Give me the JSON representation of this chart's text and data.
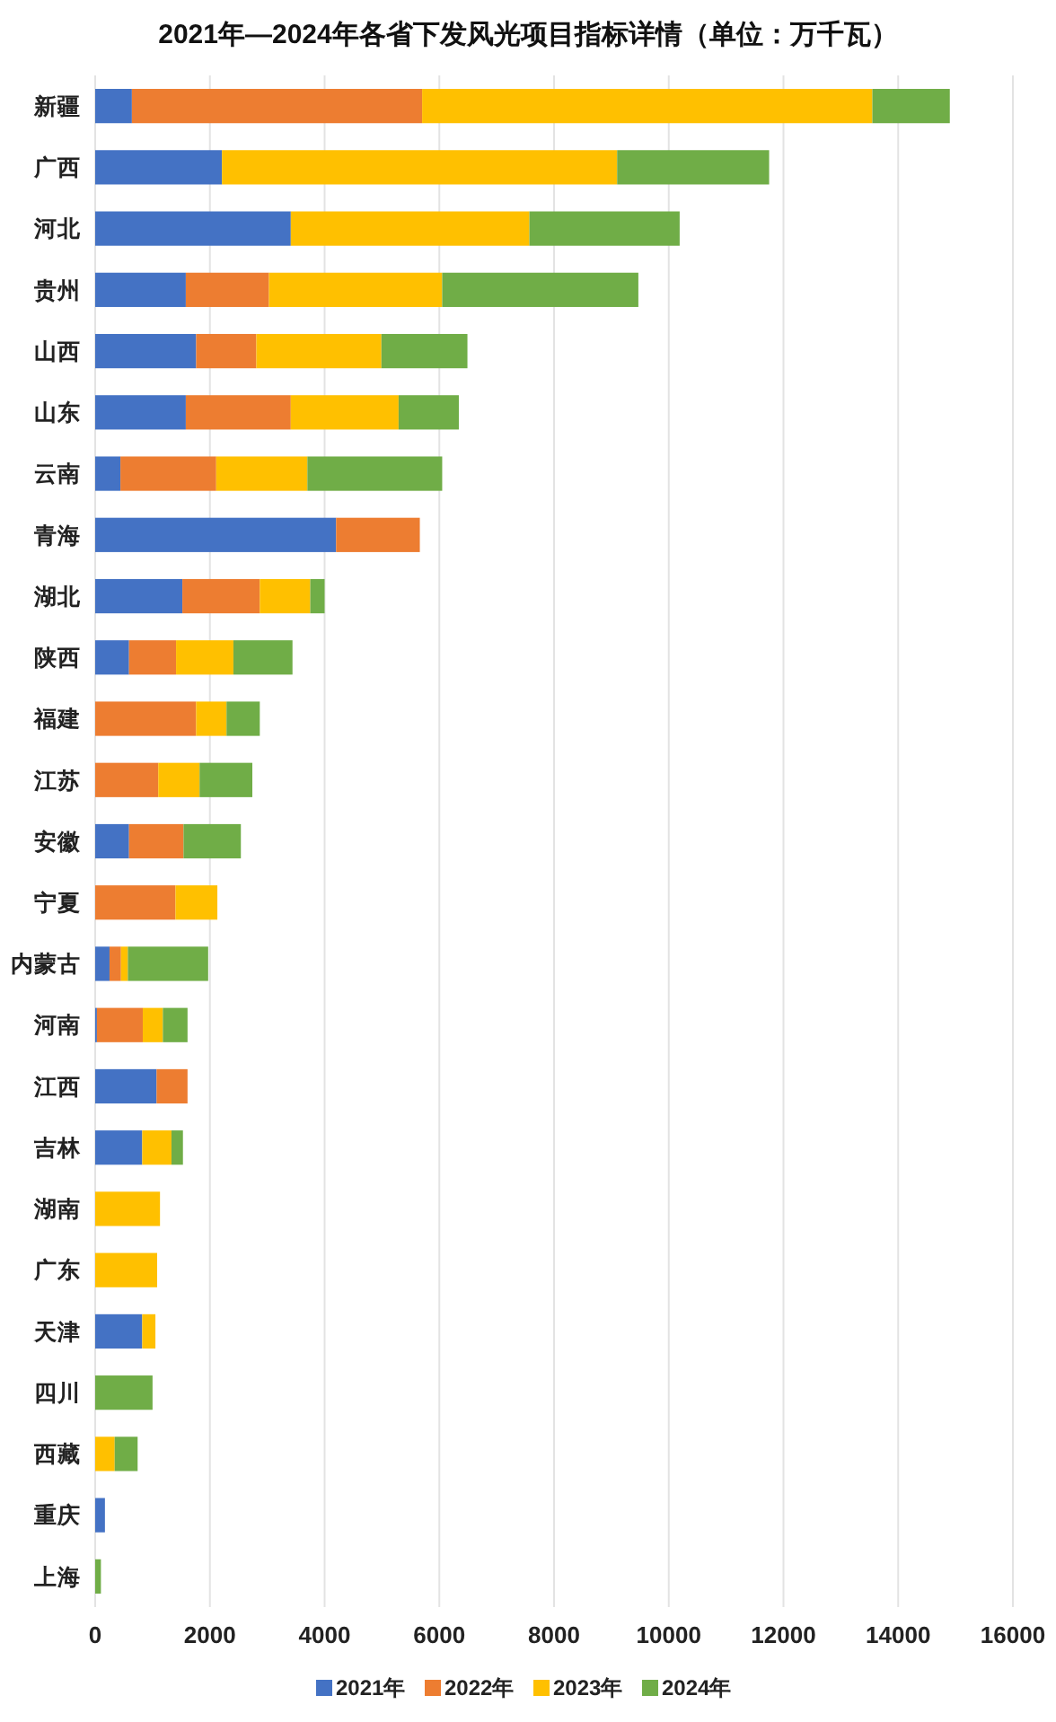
{
  "chart_data": {
    "type": "bar",
    "orientation": "horizontal",
    "stacked": true,
    "title": "2021年—2024年各省下发风光项目指标详情（单位：万千瓦）",
    "categories": [
      "新疆",
      "广西",
      "河北",
      "贵州",
      "山西",
      "山东",
      "云南",
      "青海",
      "湖北",
      "陕西",
      "福建",
      "江苏",
      "安徽",
      "宁夏",
      "内蒙古",
      "河南",
      "江西",
      "吉林",
      "湖南",
      "广东",
      "天津",
      "四川",
      "西藏",
      "重庆",
      "上海"
    ],
    "series": [
      {
        "name": "2021年",
        "color": "#4472c4",
        "values": [
          640,
          2210,
          3410,
          1580,
          1760,
          1580,
          440,
          4200,
          1520,
          590,
          null,
          null,
          590,
          null,
          250,
          30,
          1070,
          820,
          null,
          null,
          820,
          null,
          null,
          170,
          null
        ]
      },
      {
        "name": "2022年",
        "color": "#ed7d31",
        "values": [
          5060,
          null,
          null,
          1450,
          1050,
          1830,
          1670,
          1460,
          1350,
          820,
          1760,
          1100,
          950,
          1400,
          200,
          800,
          540,
          null,
          null,
          null,
          null,
          null,
          null,
          null,
          null
        ]
      },
      {
        "name": "2023年",
        "color": "#ffc000",
        "values": [
          7850,
          6890,
          4160,
          3020,
          2180,
          1880,
          1590,
          null,
          880,
          1000,
          530,
          720,
          null,
          730,
          120,
          350,
          null,
          510,
          1130,
          1080,
          230,
          null,
          340,
          null,
          null
        ]
      },
      {
        "name": "2024年",
        "color": "#70ad47",
        "values": [
          1350,
          2650,
          2620,
          3420,
          1500,
          1050,
          2350,
          null,
          250,
          1030,
          580,
          920,
          1000,
          null,
          1400,
          430,
          null,
          200,
          null,
          null,
          null,
          1000,
          400,
          null,
          100
        ]
      }
    ],
    "xlim": [
      0,
      16000
    ],
    "xticks": [
      0,
      2000,
      4000,
      6000,
      8000,
      10000,
      12000,
      14000,
      16000
    ],
    "grid": "x",
    "legend": "bottom"
  }
}
